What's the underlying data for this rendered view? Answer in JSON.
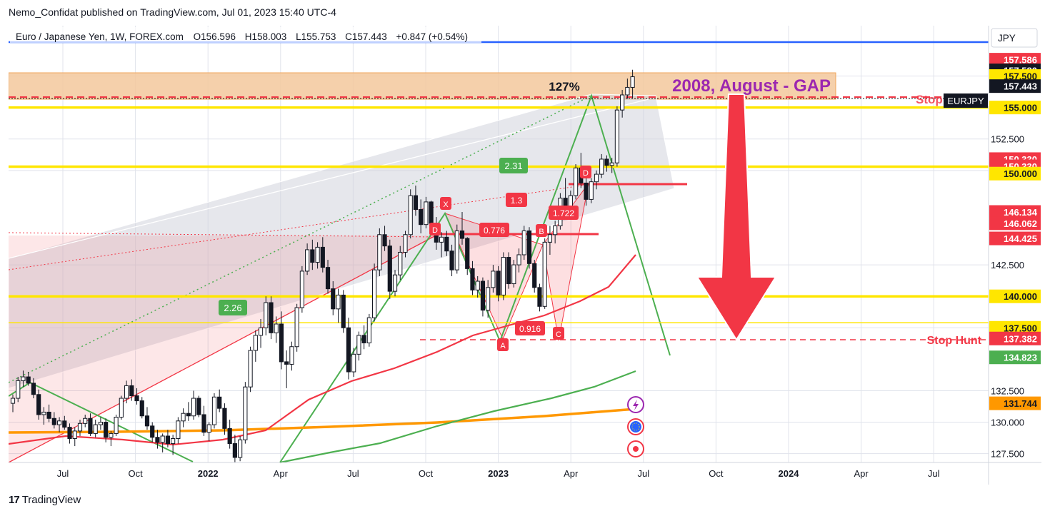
{
  "header": {
    "published": "Nemo_Confidat published on TradingView.com, Jul 01, 2023 15:40 UTC-4"
  },
  "legend": {
    "symbol": "Euro / Japanese Yen, 1W, FOREX.com",
    "o_label": "O",
    "o_value": "156.596",
    "h_label": "H",
    "h_value": "158.003",
    "l_label": "L",
    "l_value": "155.753",
    "c_label": "C",
    "c_value": "157.443",
    "change": "+0.847 (+0.54%)"
  },
  "footer": {
    "brand": "TradingView"
  },
  "colors": {
    "yellow": "#ffe600",
    "red": "#f23645",
    "green": "#4caf50",
    "orange": "#ff9800",
    "blue": "#2962ff",
    "gap_zone": "#f3c89c",
    "label_dark": "#131722",
    "purple": "#9c27b0"
  },
  "chart_data": {
    "type": "candlestick",
    "symbol": "EURJPY",
    "timeframe": "1W",
    "y_axis": {
      "unit": "JPY",
      "range": [
        126.8,
        161.5
      ],
      "ticks": [
        "157.500",
        "155.000",
        "152.500",
        "150.000",
        "142.500",
        "140.000",
        "137.500",
        "132.500",
        "130.000",
        "127.500"
      ]
    },
    "x_axis": {
      "ticks": [
        {
          "label": "Jul",
          "bold": false
        },
        {
          "label": "Oct",
          "bold": false
        },
        {
          "label": "2022",
          "bold": true
        },
        {
          "label": "Apr",
          "bold": false
        },
        {
          "label": "Jul",
          "bold": false
        },
        {
          "label": "Oct",
          "bold": false
        },
        {
          "label": "2023",
          "bold": true
        },
        {
          "label": "Apr",
          "bold": false
        },
        {
          "label": "Jul",
          "bold": false
        },
        {
          "label": "Oct",
          "bold": false
        },
        {
          "label": "2024",
          "bold": true
        },
        {
          "label": "Apr",
          "bold": false
        },
        {
          "label": "Jul",
          "bold": false
        }
      ]
    },
    "price_labels": [
      {
        "value": "157.586",
        "price": 158.8,
        "bg": "#f23645",
        "fg": "#ffffff"
      },
      {
        "value": "157.580",
        "price": 157.95,
        "bg": "#131722",
        "fg": "#ffffff"
      },
      {
        "value": "157.500",
        "price": 157.5,
        "bg": "#ffe600",
        "fg": "#131722"
      },
      {
        "value": "157.443",
        "price": 156.7,
        "bg": "#131722",
        "fg": "#ffffff"
      },
      {
        "value": "155.000",
        "price": 155.0,
        "bg": "#ffe600",
        "fg": "#131722"
      },
      {
        "value": "150.330",
        "price": 150.9,
        "bg": "#f23645",
        "fg": "#ffffff"
      },
      {
        "value": "150.330",
        "price": 150.33,
        "bg": "#f23645",
        "fg": "#ffffff"
      },
      {
        "value": "150.000",
        "price": 149.75,
        "bg": "#ffe600",
        "fg": "#131722"
      },
      {
        "value": "146.134",
        "price": 146.7,
        "bg": "#f23645",
        "fg": "#ffffff"
      },
      {
        "value": "146.062",
        "price": 145.8,
        "bg": "#f23645",
        "fg": "#ffffff"
      },
      {
        "value": "144.425",
        "price": 144.6,
        "bg": "#f23645",
        "fg": "#ffffff"
      },
      {
        "value": "140.000",
        "price": 140.0,
        "bg": "#ffe600",
        "fg": "#131722"
      },
      {
        "value": "137.500",
        "price": 137.5,
        "bg": "#ffe600",
        "fg": "#131722"
      },
      {
        "value": "137.382",
        "price": 136.65,
        "bg": "#f23645",
        "fg": "#ffffff"
      },
      {
        "value": "134.823",
        "price": 135.15,
        "bg": "#4caf50",
        "fg": "#ffffff"
      },
      {
        "value": "131.744",
        "price": 131.5,
        "bg": "#ff9800",
        "fg": "#131722"
      }
    ],
    "symbol_tag": "EURJPY",
    "currency_tag": "JPY",
    "horizontal_levels": [
      {
        "price": 155.0,
        "style": "yellow"
      },
      {
        "price": 150.3,
        "style": "yellow"
      },
      {
        "price": 140.0,
        "style": "yellow"
      },
      {
        "price": 137.9,
        "style": "yellow-thin"
      }
    ],
    "annotations": {
      "gap_text": "2008, August - GAP",
      "fib_127": "127%",
      "stop_text": "Stop",
      "stop_hunt_text": "Stop Hunt",
      "harmonic_points": [
        "X",
        "A",
        "B",
        "C",
        "D"
      ],
      "green_ratios": [
        "2.31",
        "2.26"
      ],
      "red_ratios": [
        "1.3",
        "0.776",
        "1.722",
        "0.916"
      ],
      "point_labels": [
        "D",
        "X",
        "D",
        "B",
        "A",
        "C"
      ]
    },
    "candles_ohlc": [
      [
        131.5,
        132.2,
        130.8,
        131.9
      ],
      [
        131.9,
        133.6,
        131.6,
        133.3
      ],
      [
        133.3,
        134.1,
        132.8,
        133.6
      ],
      [
        133.6,
        134.0,
        132.9,
        133.1
      ],
      [
        133.1,
        133.5,
        131.9,
        132.2
      ],
      [
        132.2,
        132.6,
        130.2,
        130.6
      ],
      [
        130.6,
        131.2,
        129.8,
        130.8
      ],
      [
        130.8,
        131.4,
        130.0,
        130.3
      ],
      [
        130.3,
        130.8,
        129.5,
        129.8
      ],
      [
        129.8,
        130.4,
        129.2,
        130.1
      ],
      [
        130.1,
        130.5,
        129.4,
        129.6
      ],
      [
        129.6,
        129.9,
        128.3,
        128.7
      ],
      [
        128.7,
        129.6,
        128.1,
        129.3
      ],
      [
        129.3,
        130.2,
        128.9,
        129.9
      ],
      [
        129.9,
        130.6,
        129.6,
        130.3
      ],
      [
        130.3,
        130.7,
        128.9,
        129.1
      ],
      [
        129.1,
        130.2,
        128.8,
        129.8
      ],
      [
        129.8,
        130.4,
        129.4,
        130.0
      ],
      [
        130.0,
        130.3,
        128.4,
        128.8
      ],
      [
        128.8,
        129.3,
        128.1,
        129.1
      ],
      [
        129.1,
        130.6,
        128.9,
        130.4
      ],
      [
        130.4,
        132.1,
        130.2,
        131.9
      ],
      [
        131.9,
        133.3,
        131.5,
        132.9
      ],
      [
        132.9,
        133.4,
        131.7,
        132.1
      ],
      [
        132.1,
        132.7,
        131.4,
        131.7
      ],
      [
        131.7,
        132.0,
        130.3,
        130.5
      ],
      [
        130.5,
        131.2,
        129.4,
        129.7
      ],
      [
        129.7,
        130.0,
        128.4,
        128.8
      ],
      [
        128.8,
        129.4,
        127.9,
        128.4
      ],
      [
        128.4,
        129.1,
        127.6,
        128.9
      ],
      [
        128.9,
        129.4,
        128.0,
        128.3
      ],
      [
        128.3,
        129.0,
        127.4,
        128.7
      ],
      [
        128.7,
        130.4,
        128.3,
        130.1
      ],
      [
        130.1,
        131.1,
        129.6,
        130.7
      ],
      [
        130.7,
        131.6,
        130.1,
        130.5
      ],
      [
        130.5,
        132.5,
        130.2,
        131.9
      ],
      [
        131.9,
        132.1,
        130.4,
        130.6
      ],
      [
        130.6,
        131.3,
        128.9,
        129.2
      ],
      [
        129.2,
        130.0,
        128.5,
        129.8
      ],
      [
        129.8,
        132.3,
        129.5,
        132.0
      ],
      [
        132.0,
        132.6,
        130.8,
        131.1
      ],
      [
        131.1,
        131.5,
        129.0,
        129.5
      ],
      [
        129.5,
        130.2,
        127.9,
        128.3
      ],
      [
        128.3,
        129.0,
        126.8,
        127.2
      ],
      [
        127.2,
        128.9,
        126.9,
        128.6
      ],
      [
        128.6,
        133.2,
        128.3,
        132.8
      ],
      [
        132.8,
        136.0,
        132.4,
        135.7
      ],
      [
        135.7,
        137.3,
        134.8,
        136.9
      ],
      [
        136.9,
        138.2,
        135.9,
        137.5
      ],
      [
        137.5,
        140.0,
        136.9,
        139.5
      ],
      [
        139.5,
        140.0,
        136.6,
        137.1
      ],
      [
        137.1,
        138.4,
        136.3,
        137.8
      ],
      [
        137.8,
        138.8,
        134.2,
        134.8
      ],
      [
        134.8,
        135.7,
        132.7,
        134.6
      ],
      [
        134.6,
        136.4,
        134.1,
        136.0
      ],
      [
        136.0,
        139.4,
        135.6,
        139.1
      ],
      [
        139.1,
        142.4,
        138.7,
        142.0
      ],
      [
        142.0,
        144.2,
        141.7,
        143.7
      ],
      [
        143.7,
        144.5,
        142.1,
        142.7
      ],
      [
        142.7,
        144.3,
        142.2,
        143.9
      ],
      [
        143.9,
        144.7,
        141.9,
        142.3
      ],
      [
        142.3,
        142.9,
        140.2,
        140.6
      ],
      [
        140.6,
        141.2,
        138.5,
        139.0
      ],
      [
        139.0,
        140.6,
        137.9,
        140.1
      ],
      [
        140.1,
        140.5,
        137.1,
        137.5
      ],
      [
        137.5,
        138.3,
        133.4,
        134.0
      ],
      [
        134.0,
        135.9,
        133.6,
        135.4
      ],
      [
        135.4,
        137.2,
        134.9,
        136.9
      ],
      [
        136.9,
        137.7,
        135.8,
        136.3
      ],
      [
        136.3,
        138.6,
        136.0,
        138.3
      ],
      [
        138.3,
        142.6,
        138.0,
        142.1
      ],
      [
        142.1,
        145.4,
        141.6,
        144.9
      ],
      [
        144.9,
        145.6,
        143.6,
        144.0
      ],
      [
        144.0,
        144.5,
        139.8,
        140.4
      ],
      [
        140.4,
        142.1,
        140.0,
        141.7
      ],
      [
        141.7,
        144.0,
        141.3,
        143.5
      ],
      [
        143.5,
        145.2,
        143.1,
        144.9
      ],
      [
        144.9,
        148.5,
        144.6,
        148.0
      ],
      [
        148.0,
        148.8,
        146.4,
        146.9
      ],
      [
        146.9,
        147.7,
        145.0,
        145.7
      ],
      [
        145.7,
        147.9,
        145.4,
        147.5
      ],
      [
        147.5,
        147.6,
        145.2,
        145.8
      ],
      [
        145.8,
        146.3,
        143.7,
        144.3
      ],
      [
        144.3,
        145.1,
        143.1,
        144.7
      ],
      [
        144.7,
        145.2,
        143.2,
        143.6
      ],
      [
        143.6,
        144.1,
        141.6,
        142.1
      ],
      [
        142.1,
        145.7,
        141.8,
        145.2
      ],
      [
        145.2,
        146.7,
        144.1,
        144.6
      ],
      [
        144.6,
        144.7,
        141.7,
        142.2
      ],
      [
        142.2,
        142.8,
        140.1,
        140.5
      ],
      [
        140.5,
        141.6,
        139.9,
        141.2
      ],
      [
        141.2,
        141.5,
        138.4,
        138.9
      ],
      [
        138.9,
        141.3,
        138.3,
        140.7
      ],
      [
        140.7,
        142.5,
        140.3,
        142.0
      ],
      [
        142.0,
        142.4,
        139.6,
        140.1
      ],
      [
        140.1,
        143.5,
        139.7,
        143.1
      ],
      [
        143.1,
        143.5,
        140.6,
        141.0
      ],
      [
        141.0,
        142.9,
        140.7,
        142.5
      ],
      [
        142.5,
        143.8,
        141.9,
        143.3
      ],
      [
        143.3,
        145.6,
        142.9,
        145.2
      ],
      [
        145.2,
        145.5,
        142.2,
        142.6
      ],
      [
        142.6,
        142.9,
        140.3,
        140.7
      ],
      [
        140.7,
        141.0,
        138.8,
        139.2
      ],
      [
        139.2,
        144.6,
        139.0,
        144.3
      ],
      [
        144.3,
        145.6,
        143.3,
        144.9
      ],
      [
        144.9,
        146.0,
        144.2,
        145.6
      ],
      [
        145.6,
        148.2,
        145.3,
        147.8
      ],
      [
        147.8,
        149.4,
        146.3,
        146.8
      ],
      [
        146.8,
        148.4,
        146.2,
        148.0
      ],
      [
        148.0,
        150.5,
        147.7,
        150.2
      ],
      [
        150.2,
        151.4,
        148.6,
        149.0
      ],
      [
        149.0,
        150.1,
        147.2,
        147.7
      ],
      [
        147.7,
        149.4,
        147.4,
        149.1
      ],
      [
        149.1,
        150.0,
        148.5,
        149.7
      ],
      [
        149.7,
        151.3,
        149.4,
        150.9
      ],
      [
        150.9,
        151.2,
        149.9,
        150.4
      ],
      [
        150.4,
        151.0,
        149.8,
        150.6
      ],
      [
        150.6,
        155.1,
        150.3,
        154.8
      ],
      [
        154.8,
        156.4,
        154.2,
        156.0
      ],
      [
        156.0,
        157.3,
        155.7,
        156.6
      ],
      [
        156.6,
        158.0,
        155.75,
        157.443
      ]
    ]
  }
}
